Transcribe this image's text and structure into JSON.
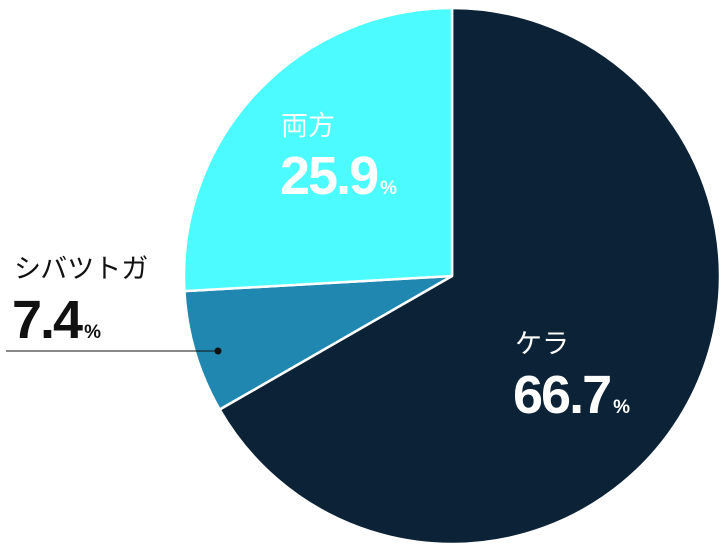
{
  "chart_data": {
    "type": "pie",
    "unit": "%",
    "slices": [
      {
        "label": "ケラ",
        "value": 66.7,
        "value_text": "66.7",
        "color": "#0c2236",
        "label_color": "#ffffff"
      },
      {
        "label": "シバツトガ",
        "value": 7.4,
        "value_text": "7.4",
        "color": "#1f87b0",
        "label_color": "#111111"
      },
      {
        "label": "両方",
        "value": 25.9,
        "value_text": "25.9",
        "color": "#4cfbff",
        "label_color": "#ffffff"
      }
    ],
    "start_angle": "12 o'clock",
    "direction": "clockwise",
    "slice_border_color": "#ffffff",
    "callout": {
      "slice": "シバツトガ",
      "style": "leader line with dot, label outside"
    }
  }
}
